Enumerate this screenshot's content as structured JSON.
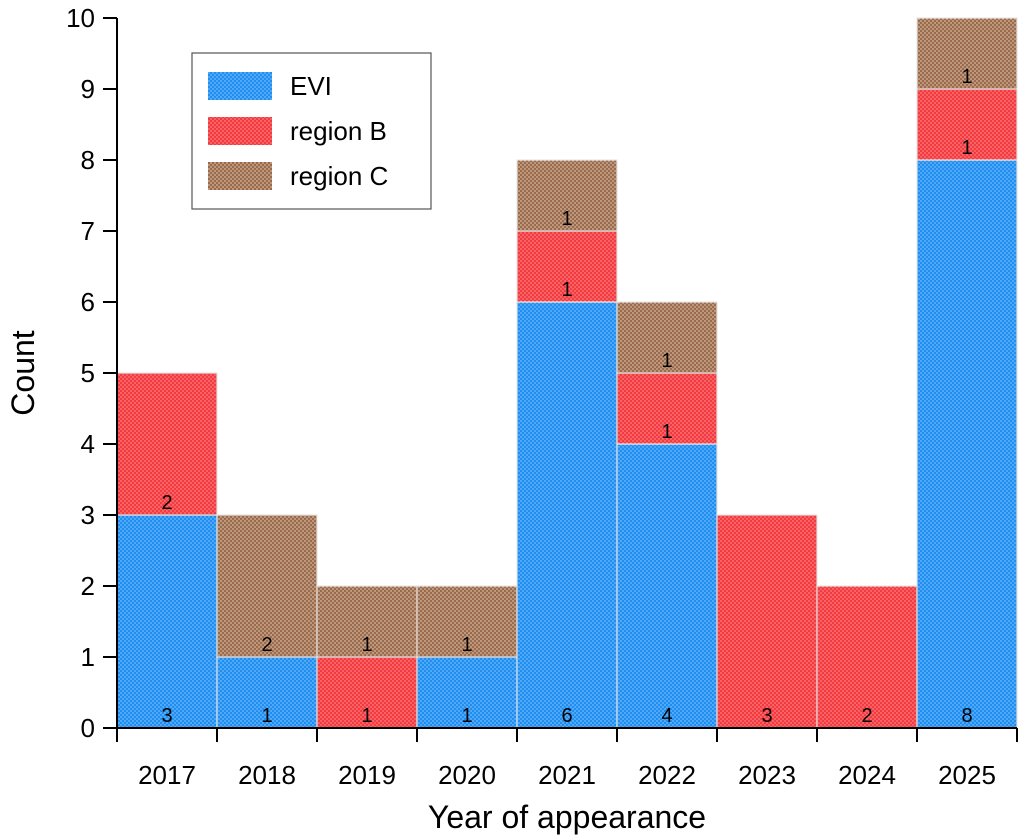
{
  "chart_data": {
    "type": "bar",
    "stacked": true,
    "title": "",
    "xlabel": "Year of appearance",
    "ylabel": "Count",
    "categories": [
      "2017",
      "2018",
      "2019",
      "2020",
      "2021",
      "2022",
      "2023",
      "2024",
      "2025"
    ],
    "ylim": [
      0,
      10
    ],
    "yticks": [
      0,
      1,
      2,
      3,
      4,
      5,
      6,
      7,
      8,
      9,
      10
    ],
    "grid": false,
    "legend_position": "top-left",
    "series": [
      {
        "name": "EVI",
        "color": "#1e8ff0",
        "pattern": "dots",
        "values": [
          3,
          1,
          0,
          1,
          6,
          4,
          0,
          0,
          8
        ]
      },
      {
        "name": "region B",
        "color": "#f23a3f",
        "pattern": "dots",
        "values": [
          2,
          0,
          1,
          0,
          1,
          1,
          3,
          2,
          1
        ]
      },
      {
        "name": "region C",
        "color": "#a8765a",
        "pattern": "crosshatch",
        "values": [
          0,
          2,
          1,
          1,
          1,
          1,
          0,
          0,
          1
        ]
      }
    ]
  }
}
